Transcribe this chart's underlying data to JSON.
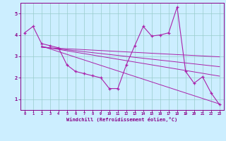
{
  "x": [
    0,
    1,
    2,
    3,
    4,
    5,
    6,
    7,
    8,
    9,
    10,
    11,
    12,
    13,
    14,
    15,
    16,
    17,
    18,
    19,
    20,
    21,
    22,
    23
  ],
  "y_main": [
    4.1,
    4.4,
    3.6,
    3.5,
    3.4,
    2.6,
    2.3,
    2.2,
    2.1,
    2.0,
    1.5,
    1.5,
    2.6,
    3.5,
    4.4,
    3.95,
    4.0,
    4.1,
    5.3,
    2.3,
    1.75,
    2.05,
    1.3,
    0.75
  ],
  "trend_lines": [
    {
      "x0": 2.0,
      "y0": 3.48,
      "x1": 23,
      "y1": 0.78
    },
    {
      "x0": 2.0,
      "y0": 3.46,
      "x1": 23,
      "y1": 2.08
    },
    {
      "x0": 2.0,
      "y0": 3.44,
      "x1": 23,
      "y1": 2.52
    },
    {
      "x0": 2.0,
      "y0": 3.42,
      "x1": 23,
      "y1": 2.98
    }
  ],
  "line_color": "#aa22aa",
  "bg_color": "#cceeff",
  "grid_color": "#99cccc",
  "xlabel": "Windchill (Refroidissement éolien,°C)",
  "xlim": [
    -0.5,
    23.5
  ],
  "ylim": [
    0.5,
    5.5
  ],
  "yticks": [
    1,
    2,
    3,
    4,
    5
  ],
  "xticks": [
    0,
    1,
    2,
    3,
    4,
    5,
    6,
    7,
    8,
    9,
    10,
    11,
    12,
    13,
    14,
    15,
    16,
    17,
    18,
    19,
    20,
    21,
    22,
    23
  ],
  "tick_color": "#880088",
  "label_color": "#880088"
}
